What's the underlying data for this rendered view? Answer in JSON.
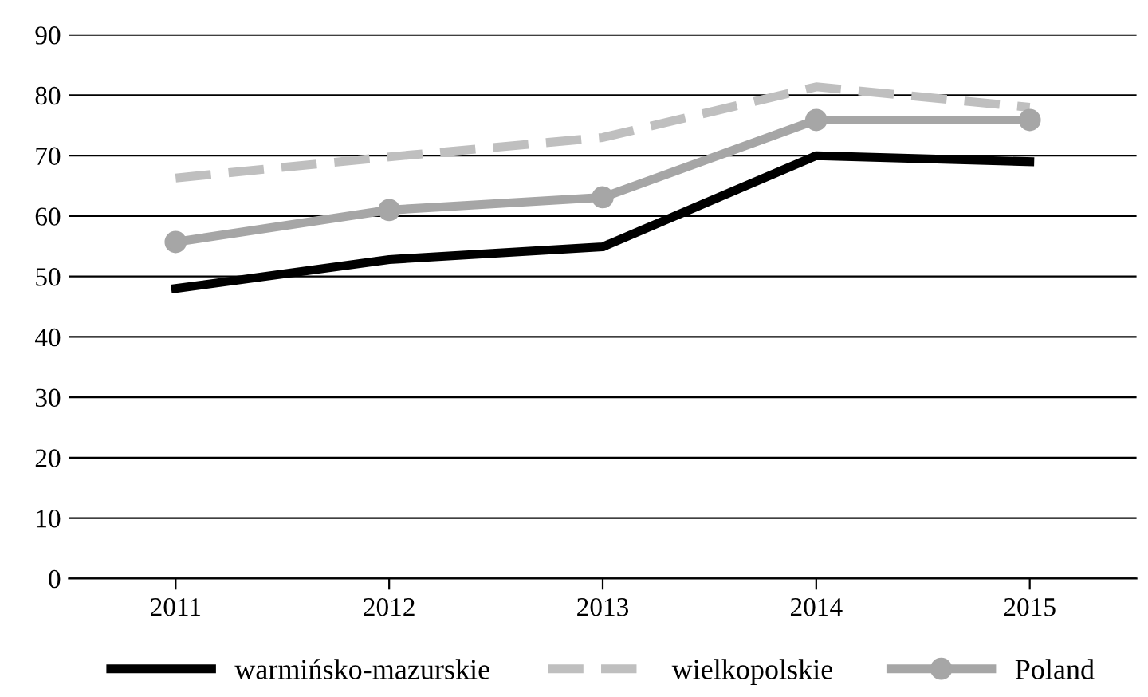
{
  "chart_data": {
    "type": "line",
    "categories": [
      "2011",
      "2012",
      "2013",
      "2014",
      "2015"
    ],
    "series": [
      {
        "name": "warmińsko-mazurskie",
        "color": "#000000",
        "values": [
          48,
          52.8,
          54.9,
          70,
          69
        ],
        "marker": "none",
        "line_style": "solid"
      },
      {
        "name": "wielkopolskie",
        "color": "#bfbfbf",
        "values": [
          66.3,
          69.8,
          73,
          81.4,
          78
        ],
        "marker": "none",
        "line_style": "dashed"
      },
      {
        "name": "Poland",
        "color": "#a6a6a6",
        "values": [
          55.7,
          61,
          63.1,
          75.9,
          75.9
        ],
        "marker": "circle",
        "line_style": "solid"
      }
    ],
    "ylim": [
      0,
      90
    ],
    "yticks": [
      0,
      10,
      20,
      30,
      40,
      50,
      60,
      70,
      80,
      90
    ],
    "grid": "y",
    "legend": "bottom"
  }
}
